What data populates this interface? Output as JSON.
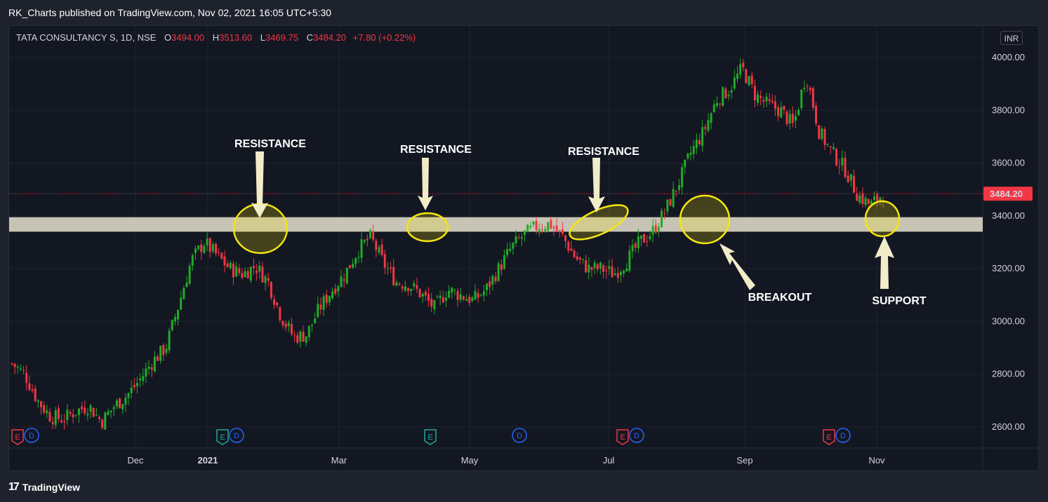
{
  "header": {
    "published": "RK_Charts published on TradingView.com, Nov 02, 2021 16:05 UTC+5:30"
  },
  "legend": {
    "symbol": "TATA CONSULTANCY S, 1D, NSE",
    "o_label": "O",
    "o": "3494.00",
    "h_label": "H",
    "h": "3513.60",
    "l_label": "L",
    "l": "3469.75",
    "c_label": "C",
    "c": "3484.20",
    "change": "+7.80 (+0.22%)"
  },
  "currency": "INR",
  "footer": {
    "logo": "17",
    "brand": "TradingView"
  },
  "colors": {
    "up": "#22ab27",
    "down": "#f23645",
    "zone": "#d8d4c2",
    "highlight": "#f5e50f",
    "background": "#131722",
    "grid": "#1e222d"
  },
  "chart_data": {
    "type": "candlestick",
    "yticks": [
      "4000.00",
      "3800.00",
      "3600.00",
      "3400.00",
      "3200.00",
      "3000.00",
      "2800.00",
      "2600.00"
    ],
    "ylim": [
      2520,
      4120
    ],
    "xticks": [
      "Dec",
      "2021",
      "Mar",
      "May",
      "Jul",
      "Sep",
      "Nov"
    ],
    "last_price": "3484.20",
    "last_price_value": 3484.2,
    "zone": [
      3340,
      3395
    ],
    "path": [
      [
        2840,
        "Nov"
      ],
      [
        2800,
        "Nov"
      ],
      [
        2700,
        "Nov"
      ],
      [
        2640,
        "Dec"
      ],
      [
        2630,
        "Dec"
      ],
      [
        2660,
        "Dec"
      ],
      [
        2680,
        "Dec"
      ],
      [
        2620,
        "Dec"
      ],
      [
        2680,
        "Dec"
      ],
      [
        2720,
        "Jan"
      ],
      [
        2780,
        "Jan"
      ],
      [
        2850,
        "Jan"
      ],
      [
        2900,
        "Jan"
      ],
      [
        3060,
        "Feb"
      ],
      [
        3230,
        "Feb"
      ],
      [
        3300,
        "Feb"
      ],
      [
        3250,
        "Feb"
      ],
      [
        3200,
        "Feb"
      ],
      [
        3180,
        "Feb"
      ],
      [
        3210,
        "Mar"
      ],
      [
        3150,
        "Mar"
      ],
      [
        3020,
        "Mar"
      ],
      [
        2940,
        "Mar"
      ],
      [
        2950,
        "Mar"
      ],
      [
        3050,
        "Mar"
      ],
      [
        3120,
        "Apr"
      ],
      [
        3180,
        "Apr"
      ],
      [
        3270,
        "Apr"
      ],
      [
        3320,
        "Apr"
      ],
      [
        3220,
        "Apr"
      ],
      [
        3150,
        "Apr"
      ],
      [
        3140,
        "May"
      ],
      [
        3100,
        "May"
      ],
      [
        3050,
        "May"
      ],
      [
        3120,
        "May"
      ],
      [
        3100,
        "May"
      ],
      [
        3080,
        "May"
      ],
      [
        3120,
        "Jun"
      ],
      [
        3200,
        "Jun"
      ],
      [
        3280,
        "Jun"
      ],
      [
        3330,
        "Jun"
      ],
      [
        3360,
        "Jun"
      ],
      [
        3370,
        "Jun"
      ],
      [
        3320,
        "Jul"
      ],
      [
        3240,
        "Jul"
      ],
      [
        3200,
        "Jul"
      ],
      [
        3200,
        "Jul"
      ],
      [
        3180,
        "Jul"
      ],
      [
        3230,
        "Jul"
      ],
      [
        3300,
        "Aug"
      ],
      [
        3340,
        "Aug"
      ],
      [
        3420,
        "Aug"
      ],
      [
        3520,
        "Aug"
      ],
      [
        3640,
        "Aug"
      ],
      [
        3720,
        "Sep"
      ],
      [
        3840,
        "Sep"
      ],
      [
        3880,
        "Sep"
      ],
      [
        3960,
        "Sep"
      ],
      [
        3860,
        "Sep"
      ],
      [
        3820,
        "Sep"
      ],
      [
        3800,
        "Oct"
      ],
      [
        3740,
        "Oct"
      ],
      [
        3940,
        "Oct"
      ],
      [
        3720,
        "Oct"
      ],
      [
        3640,
        "Oct"
      ],
      [
        3580,
        "Oct"
      ],
      [
        3480,
        "Nov"
      ],
      [
        3440,
        "Nov"
      ],
      [
        3484,
        "Nov"
      ]
    ],
    "annotations": [
      {
        "text": "RESISTANCE",
        "at": "Feb"
      },
      {
        "text": "RESISTANCE",
        "at": "Apr"
      },
      {
        "text": "RESISTANCE",
        "at": "Jun"
      },
      {
        "text": "BREAKOUT",
        "at": "Aug"
      },
      {
        "text": "SUPPORT",
        "at": "Nov"
      }
    ],
    "events": [
      {
        "marks": [
          "E",
          "D"
        ],
        "at": "Nov"
      },
      {
        "marks": [
          "E",
          "D"
        ],
        "at": "Jan"
      },
      {
        "marks": [
          "E"
        ],
        "at": "Apr"
      },
      {
        "marks": [
          "D"
        ],
        "at": "May"
      },
      {
        "marks": [
          "E",
          "D"
        ],
        "at": "Jul"
      },
      {
        "marks": [
          "E",
          "D"
        ],
        "at": "Oct"
      }
    ]
  }
}
